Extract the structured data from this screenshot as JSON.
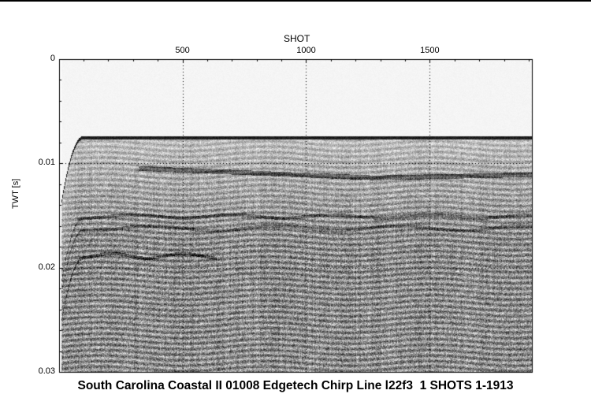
{
  "chart_data": {
    "type": "heatmap",
    "title": "South Carolina Coastal II 01008 Edgetech Chirp Line l22f3  1 SHOTS 1-1913",
    "xlabel": "SHOT",
    "ylabel": "TWT [s]",
    "xlim": [
      1,
      1913
    ],
    "ylim": [
      0,
      0.03
    ],
    "y_inverted": true,
    "x_ticks": [
      500,
      1000,
      1500
    ],
    "x_tick_labels": [
      "500",
      "1000",
      "1500"
    ],
    "y_ticks": [
      0,
      0.01,
      0.02,
      0.03
    ],
    "y_tick_labels": [
      "0",
      "0.01",
      "0.02",
      "0.03"
    ],
    "grid": "dotted at labeled ticks",
    "colormap": "grayscale",
    "seafloor_twt_s": 0.0075
  }
}
